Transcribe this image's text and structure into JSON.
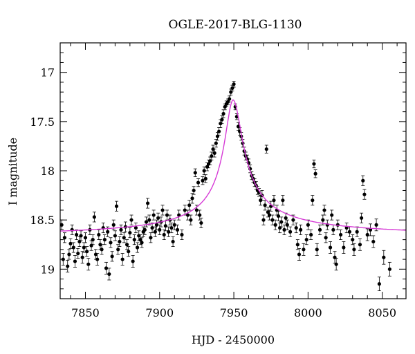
{
  "chart_data": {
    "type": "scatter",
    "title": "OGLE-2017-BLG-1130",
    "xlabel": "HJD - 2450000",
    "ylabel": "I magnitude",
    "xlim": [
      7833,
      8066
    ],
    "ylim": [
      19.3,
      16.7
    ],
    "y_inverted": true,
    "x_ticks": [
      7850,
      7900,
      7950,
      8000,
      8050
    ],
    "y_ticks": [
      17,
      17.5,
      18,
      18.5,
      19
    ],
    "x_tick_labels": [
      "7850",
      "7900",
      "7950",
      "8000",
      "8050"
    ],
    "y_tick_labels": [
      "17",
      "17.5",
      "18",
      "18.5",
      "19"
    ],
    "grid": false,
    "legend": "none",
    "colors": {
      "points": "#000000",
      "model": "#d63ad6"
    },
    "series": [
      {
        "type": "scatter-errorbar",
        "points": [
          [
            7834,
            18.55,
            0.05
          ],
          [
            7835,
            18.9,
            0.06
          ],
          [
            7836,
            18.68,
            0.05
          ],
          [
            7838,
            18.97,
            0.06
          ],
          [
            7839,
            18.85,
            0.05
          ],
          [
            7840,
            18.74,
            0.05
          ],
          [
            7841,
            18.6,
            0.05
          ],
          [
            7842,
            18.78,
            0.05
          ],
          [
            7843,
            18.92,
            0.06
          ],
          [
            7844,
            18.65,
            0.05
          ],
          [
            7845,
            18.84,
            0.05
          ],
          [
            7846,
            18.72,
            0.05
          ],
          [
            7847,
            18.66,
            0.05
          ],
          [
            7848,
            18.88,
            0.06
          ],
          [
            7849,
            18.78,
            0.05
          ],
          [
            7850,
            18.68,
            0.05
          ],
          [
            7851,
            18.82,
            0.05
          ],
          [
            7852,
            18.95,
            0.06
          ],
          [
            7853,
            18.6,
            0.05
          ],
          [
            7854,
            18.76,
            0.05
          ],
          [
            7855,
            18.7,
            0.05
          ],
          [
            7856,
            18.47,
            0.05
          ],
          [
            7857,
            18.85,
            0.05
          ],
          [
            7858,
            18.9,
            0.06
          ],
          [
            7859,
            18.65,
            0.05
          ],
          [
            7860,
            18.75,
            0.05
          ],
          [
            7861,
            18.8,
            0.05
          ],
          [
            7862,
            18.58,
            0.05
          ],
          [
            7863,
            18.7,
            0.05
          ],
          [
            7864,
            18.99,
            0.06
          ],
          [
            7865,
            18.62,
            0.05
          ],
          [
            7866,
            19.05,
            0.06
          ],
          [
            7867,
            18.73,
            0.05
          ],
          [
            7868,
            18.87,
            0.05
          ],
          [
            7869,
            18.55,
            0.05
          ],
          [
            7870,
            18.66,
            0.05
          ],
          [
            7871,
            18.36,
            0.05
          ],
          [
            7872,
            18.8,
            0.05
          ],
          [
            7873,
            18.72,
            0.05
          ],
          [
            7874,
            18.6,
            0.05
          ],
          [
            7875,
            18.9,
            0.06
          ],
          [
            7876,
            18.68,
            0.05
          ],
          [
            7877,
            18.57,
            0.05
          ],
          [
            7878,
            18.75,
            0.05
          ],
          [
            7879,
            18.82,
            0.05
          ],
          [
            7880,
            18.63,
            0.05
          ],
          [
            7881,
            18.5,
            0.05
          ],
          [
            7882,
            18.92,
            0.06
          ],
          [
            7883,
            18.7,
            0.05
          ],
          [
            7884,
            18.58,
            0.05
          ],
          [
            7885,
            18.78,
            0.05
          ],
          [
            7886,
            18.66,
            0.05
          ],
          [
            7887,
            18.7,
            0.05
          ],
          [
            7888,
            18.73,
            0.05
          ],
          [
            7889,
            18.62,
            0.05
          ],
          [
            7890,
            18.6,
            0.05
          ],
          [
            7891,
            18.52,
            0.05
          ],
          [
            7892,
            18.33,
            0.05
          ],
          [
            7893,
            18.5,
            0.05
          ],
          [
            7894,
            18.68,
            0.05
          ],
          [
            7895,
            18.58,
            0.05
          ],
          [
            7896,
            18.45,
            0.05
          ],
          [
            7897,
            18.62,
            0.05
          ],
          [
            7898,
            18.55,
            0.05
          ],
          [
            7899,
            18.48,
            0.05
          ],
          [
            7900,
            18.6,
            0.05
          ],
          [
            7901,
            18.52,
            0.05
          ],
          [
            7902,
            18.4,
            0.05
          ],
          [
            7903,
            18.65,
            0.05
          ],
          [
            7904,
            18.56,
            0.05
          ],
          [
            7905,
            18.45,
            0.05
          ],
          [
            7906,
            18.62,
            0.05
          ],
          [
            7907,
            18.5,
            0.05
          ],
          [
            7908,
            18.58,
            0.05
          ],
          [
            7909,
            18.72,
            0.05
          ],
          [
            7910,
            18.55,
            0.05
          ],
          [
            7912,
            18.6,
            0.05
          ],
          [
            7913,
            18.45,
            0.05
          ],
          [
            7915,
            18.65,
            0.05
          ],
          [
            7917,
            18.4,
            0.05
          ],
          [
            7919,
            18.45,
            0.05
          ],
          [
            7920,
            18.35,
            0.05
          ],
          [
            7921,
            18.5,
            0.05
          ],
          [
            7922,
            18.28,
            0.05
          ],
          [
            7923,
            18.2,
            0.04
          ],
          [
            7924,
            18.02,
            0.04
          ],
          [
            7925,
            18.4,
            0.05
          ],
          [
            7926,
            18.12,
            0.04
          ],
          [
            7927,
            18.45,
            0.05
          ],
          [
            7928,
            18.53,
            0.05
          ],
          [
            7929,
            18.1,
            0.04
          ],
          [
            7930,
            18.0,
            0.04
          ],
          [
            7931,
            18.08,
            0.04
          ],
          [
            7932,
            17.96,
            0.04
          ],
          [
            7933,
            17.93,
            0.04
          ],
          [
            7934,
            17.9,
            0.04
          ],
          [
            7935,
            17.85,
            0.04
          ],
          [
            7936,
            17.78,
            0.04
          ],
          [
            7937,
            17.82,
            0.04
          ],
          [
            7938,
            17.72,
            0.04
          ],
          [
            7939,
            17.65,
            0.04
          ],
          [
            7940,
            17.6,
            0.04
          ],
          [
            7941,
            17.52,
            0.04
          ],
          [
            7942,
            17.48,
            0.04
          ],
          [
            7943,
            17.42,
            0.04
          ],
          [
            7944,
            17.35,
            0.03
          ],
          [
            7945,
            17.32,
            0.03
          ],
          [
            7946,
            17.3,
            0.03
          ],
          [
            7947,
            17.27,
            0.03
          ],
          [
            7948,
            17.2,
            0.03
          ],
          [
            7949,
            17.16,
            0.03
          ],
          [
            7950,
            17.12,
            0.03
          ],
          [
            7951,
            17.35,
            0.03
          ],
          [
            7952,
            17.45,
            0.03
          ],
          [
            7953,
            17.55,
            0.04
          ],
          [
            7954,
            17.6,
            0.04
          ],
          [
            7955,
            17.65,
            0.04
          ],
          [
            7956,
            17.72,
            0.04
          ],
          [
            7957,
            17.8,
            0.04
          ],
          [
            7958,
            17.85,
            0.04
          ],
          [
            7959,
            17.88,
            0.04
          ],
          [
            7960,
            17.92,
            0.04
          ],
          [
            7961,
            17.98,
            0.04
          ],
          [
            7962,
            18.05,
            0.04
          ],
          [
            7963,
            18.08,
            0.04
          ],
          [
            7964,
            18.12,
            0.04
          ],
          [
            7965,
            18.15,
            0.04
          ],
          [
            7966,
            18.2,
            0.04
          ],
          [
            7967,
            18.22,
            0.04
          ],
          [
            7968,
            18.3,
            0.05
          ],
          [
            7969,
            18.25,
            0.05
          ],
          [
            7970,
            18.5,
            0.05
          ],
          [
            7971,
            18.35,
            0.05
          ],
          [
            7972,
            17.78,
            0.04
          ],
          [
            7973,
            18.42,
            0.05
          ],
          [
            7974,
            18.45,
            0.05
          ],
          [
            7975,
            18.36,
            0.05
          ],
          [
            7976,
            18.5,
            0.05
          ],
          [
            7977,
            18.3,
            0.05
          ],
          [
            7978,
            18.55,
            0.05
          ],
          [
            7979,
            18.4,
            0.05
          ],
          [
            7980,
            18.46,
            0.05
          ],
          [
            7981,
            18.58,
            0.05
          ],
          [
            7982,
            18.52,
            0.05
          ],
          [
            7983,
            18.3,
            0.05
          ],
          [
            7984,
            18.6,
            0.05
          ],
          [
            7985,
            18.48,
            0.05
          ],
          [
            7986,
            18.55,
            0.05
          ],
          [
            7988,
            18.62,
            0.05
          ],
          [
            7990,
            18.5,
            0.05
          ],
          [
            7992,
            18.58,
            0.05
          ],
          [
            7993,
            18.75,
            0.05
          ],
          [
            7994,
            18.85,
            0.06
          ],
          [
            7995,
            18.6,
            0.05
          ],
          [
            7997,
            18.8,
            0.06
          ],
          [
            7999,
            18.7,
            0.05
          ],
          [
            8000,
            18.55,
            0.05
          ],
          [
            8002,
            18.65,
            0.05
          ],
          [
            8003,
            18.3,
            0.05
          ],
          [
            8004,
            17.93,
            0.04
          ],
          [
            8005,
            18.03,
            0.04
          ],
          [
            8006,
            18.8,
            0.06
          ],
          [
            8008,
            18.6,
            0.05
          ],
          [
            8010,
            18.5,
            0.05
          ],
          [
            8011,
            18.4,
            0.05
          ],
          [
            8012,
            18.68,
            0.05
          ],
          [
            8013,
            18.55,
            0.05
          ],
          [
            8015,
            18.78,
            0.06
          ],
          [
            8016,
            18.45,
            0.05
          ],
          [
            8017,
            18.6,
            0.05
          ],
          [
            8018,
            18.88,
            0.06
          ],
          [
            8019,
            18.95,
            0.06
          ],
          [
            8020,
            18.55,
            0.05
          ],
          [
            8022,
            18.65,
            0.05
          ],
          [
            8024,
            18.78,
            0.06
          ],
          [
            8026,
            18.58,
            0.05
          ],
          [
            8028,
            18.62,
            0.05
          ],
          [
            8030,
            18.7,
            0.05
          ],
          [
            8031,
            18.8,
            0.06
          ],
          [
            8033,
            18.62,
            0.05
          ],
          [
            8035,
            18.75,
            0.06
          ],
          [
            8036,
            18.48,
            0.05
          ],
          [
            8037,
            18.1,
            0.05
          ],
          [
            8038,
            18.24,
            0.05
          ],
          [
            8040,
            18.65,
            0.06
          ],
          [
            8042,
            18.6,
            0.06
          ],
          [
            8044,
            18.72,
            0.06
          ],
          [
            8046,
            18.55,
            0.06
          ],
          [
            8048,
            19.15,
            0.07
          ],
          [
            8051,
            18.88,
            0.07
          ],
          [
            8055,
            19.0,
            0.07
          ]
        ]
      },
      {
        "type": "line",
        "model": "microlensing fit",
        "t0": 7949.5,
        "base_mag": 18.68,
        "peak_mag": 17.28
      }
    ]
  }
}
